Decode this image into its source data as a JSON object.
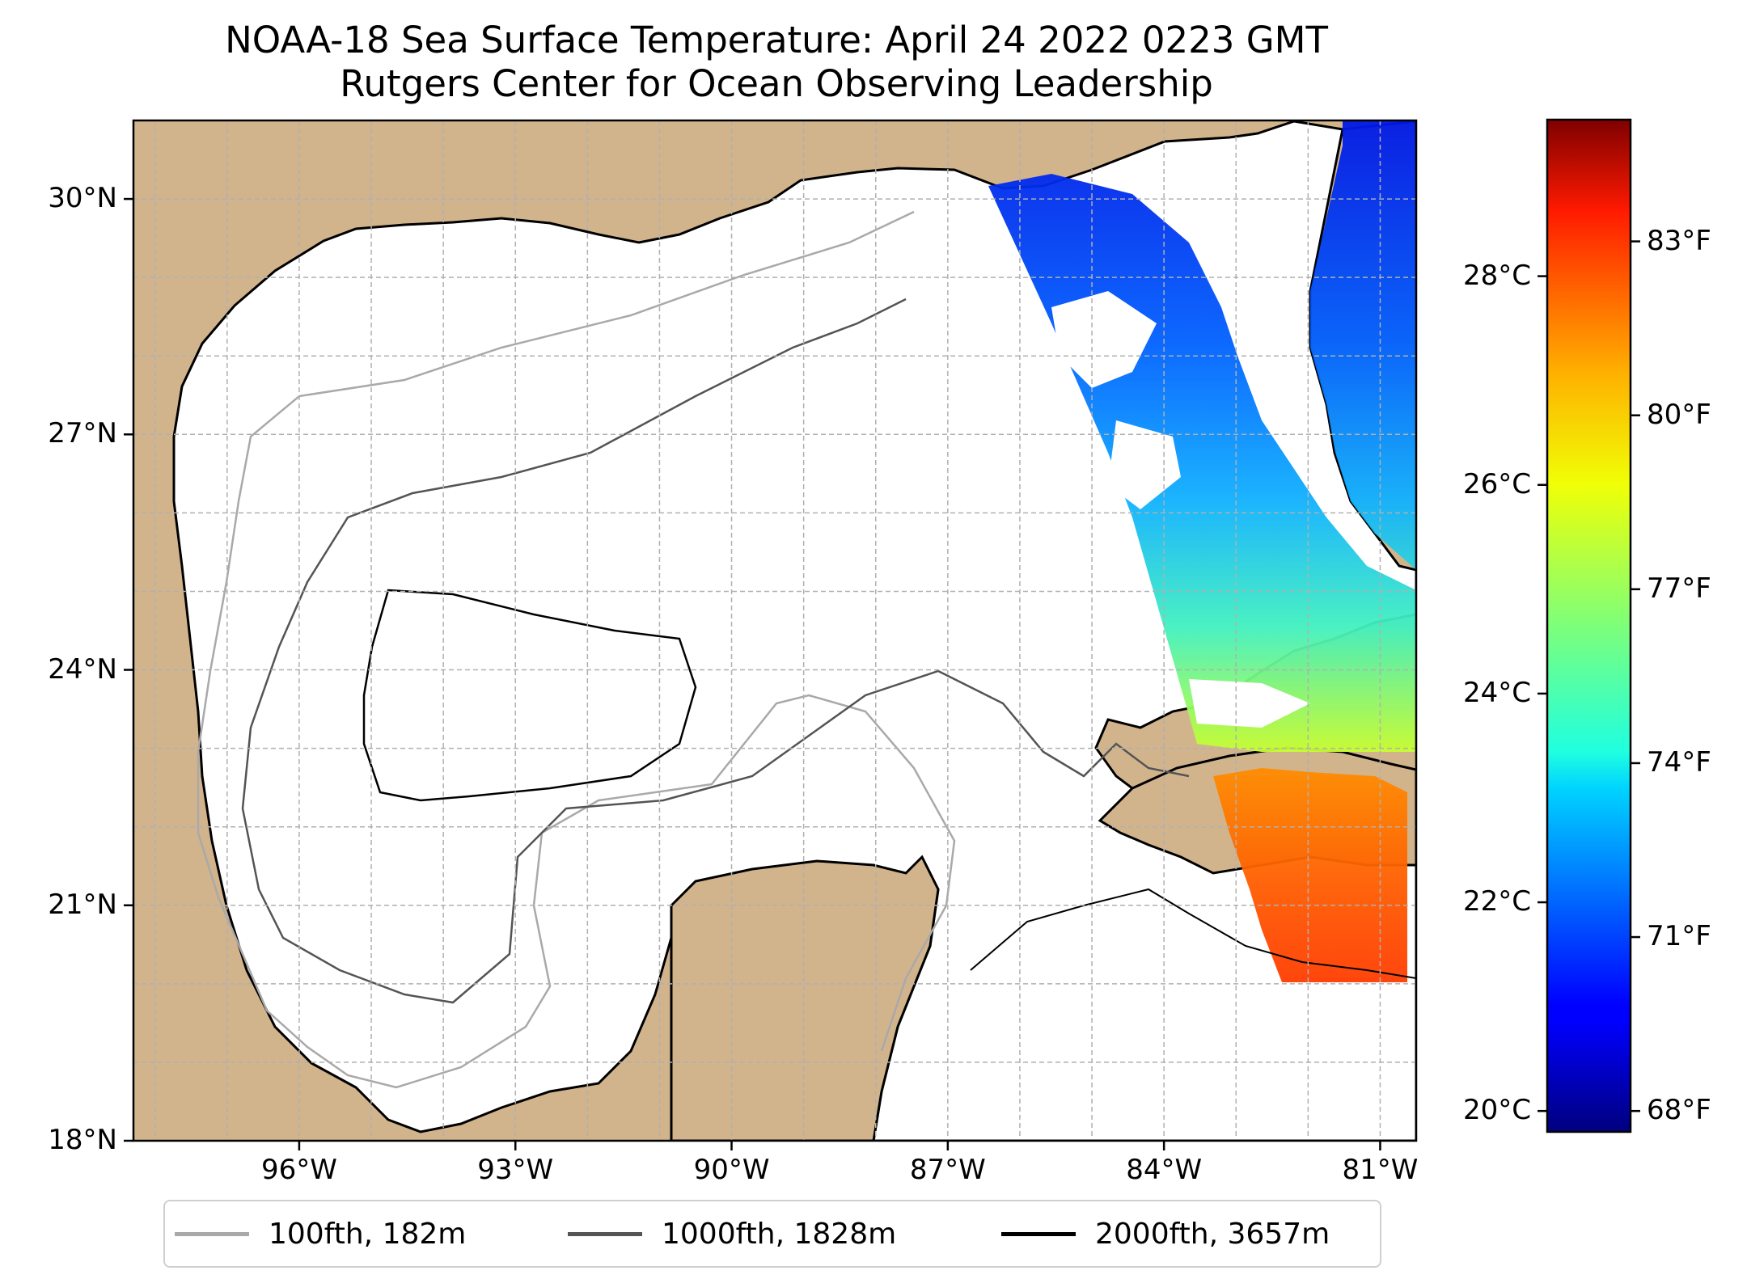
{
  "title": "NOAA-18 Sea Surface Temperature: April 24 2022 0223 GMT",
  "subtitle": "Rutgers Center for Ocean Observing Leadership",
  "map": {
    "lon_range": [
      -98.3,
      -80.5
    ],
    "lat_range": [
      18,
      31
    ],
    "lat_ticks": [
      {
        "value": 18,
        "label": "18°N"
      },
      {
        "value": 21,
        "label": "21°N"
      },
      {
        "value": 24,
        "label": "24°N"
      },
      {
        "value": 27,
        "label": "27°N"
      },
      {
        "value": 30,
        "label": "30°N"
      }
    ],
    "lon_ticks": [
      {
        "value": -96,
        "label": "96°W"
      },
      {
        "value": -93,
        "label": "93°W"
      },
      {
        "value": -90,
        "label": "90°W"
      },
      {
        "value": -87,
        "label": "87°W"
      },
      {
        "value": -84,
        "label": "84°W"
      },
      {
        "value": -81,
        "label": "81°W"
      }
    ],
    "grid": true,
    "colors": {
      "land": "#d2b48c",
      "ocean": "#ffffff",
      "lakes": "#9fb9e0",
      "grid": "#b0b0b0"
    }
  },
  "colorbar": {
    "colormap": "jet",
    "celsius_range": [
      19.8,
      29.5
    ],
    "celsius_ticks": [
      {
        "value": 20,
        "label": "20°C"
      },
      {
        "value": 22,
        "label": "22°C"
      },
      {
        "value": 24,
        "label": "24°C"
      },
      {
        "value": 26,
        "label": "26°C"
      },
      {
        "value": 28,
        "label": "28°C"
      }
    ],
    "fahrenheit_ticks": [
      {
        "value": 68,
        "label": "68°F"
      },
      {
        "value": 71,
        "label": "71°F"
      },
      {
        "value": 74,
        "label": "74°F"
      },
      {
        "value": 77,
        "label": "77°F"
      },
      {
        "value": 80,
        "label": "80°F"
      },
      {
        "value": 83,
        "label": "83°F"
      }
    ]
  },
  "legend": {
    "position": "bottom-center",
    "items": [
      {
        "label": "100fth, 182m",
        "color": "#a9a9a9"
      },
      {
        "label": "1000fth, 1828m",
        "color": "#545454"
      },
      {
        "label": "2000fth, 3657m",
        "color": "#000000"
      }
    ]
  }
}
